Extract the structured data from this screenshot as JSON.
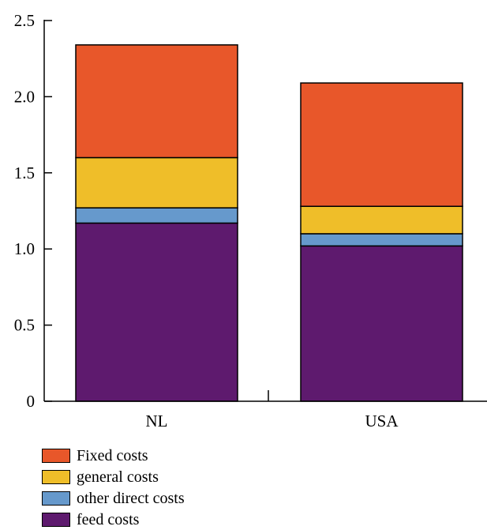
{
  "chart_data": {
    "type": "bar",
    "stacked": true,
    "categories": [
      "NL",
      "USA"
    ],
    "series": [
      {
        "name": "feed costs",
        "color": "#5e1a6e",
        "values": [
          1.17,
          1.02
        ]
      },
      {
        "name": "other direct costs",
        "color": "#6699cc",
        "values": [
          0.1,
          0.08
        ]
      },
      {
        "name": "general costs",
        "color": "#efbe29",
        "values": [
          0.33,
          0.18
        ]
      },
      {
        "name": "Fixed costs",
        "color": "#e8572a",
        "values": [
          0.74,
          0.81
        ]
      }
    ],
    "title": "",
    "xlabel": "",
    "ylabel": "",
    "ylim": [
      0,
      2.5
    ],
    "yticks": [
      "0",
      "0.5",
      "1.0",
      "1.5",
      "2.0",
      "2.5"
    ],
    "yticks_values": [
      0,
      0.5,
      1.0,
      1.5,
      2.0,
      2.5
    ],
    "grid": false,
    "legend_position": "bottom-left",
    "legend_order": [
      "Fixed costs",
      "general costs",
      "other direct costs",
      "feed costs"
    ]
  }
}
